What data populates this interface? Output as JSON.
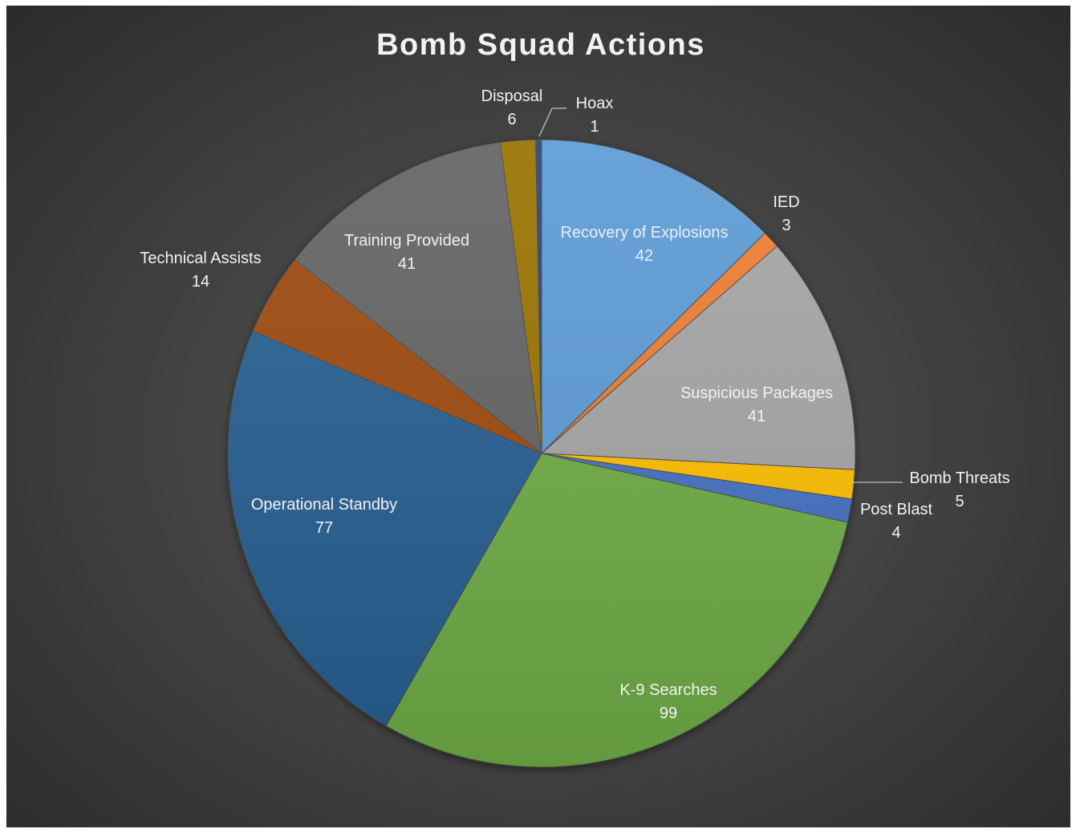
{
  "chart_data": {
    "type": "pie",
    "title": "Bomb Squad Actions",
    "legend": "none",
    "slices": [
      {
        "label": "Recovery of Explosions",
        "value": 42,
        "color": "#5b9bd5",
        "label_color": "#e8f0fa",
        "label_placement": "inside"
      },
      {
        "label": "IED",
        "value": 3,
        "color": "#ed7d31",
        "label_color": "#f2f2f2",
        "label_placement": "outside"
      },
      {
        "label": "Suspicious Packages",
        "value": 41,
        "color": "#a5a5a5",
        "label_color": "#f2f2f2",
        "label_placement": "inside"
      },
      {
        "label": "Bomb Threats",
        "value": 5,
        "color": "#ffc000",
        "label_color": "#f2f2f2",
        "label_placement": "outside"
      },
      {
        "label": "Post Blast",
        "value": 4,
        "color": "#4472c4",
        "label_color": "#f2f2f2",
        "label_placement": "outside"
      },
      {
        "label": "K-9 Searches",
        "value": 99,
        "color": "#70ad47",
        "label_color": "#f2f2f2",
        "label_placement": "inside"
      },
      {
        "label": "Operational Standby",
        "value": 77,
        "color": "#255e91",
        "label_color": "#f2f2f2",
        "label_placement": "inside"
      },
      {
        "label": "Technical Assists",
        "value": 14,
        "color": "#9e480e",
        "label_color": "#f2f2f2",
        "label_placement": "outside"
      },
      {
        "label": "Training Provided",
        "value": 41,
        "color": "#636363",
        "label_color": "#f2f2f2",
        "label_placement": "inside"
      },
      {
        "label": "Disposal",
        "value": 6,
        "color": "#997300",
        "label_color": "#f2f2f2",
        "label_placement": "outside"
      },
      {
        "label": "Hoax",
        "value": 1,
        "color": "#264478",
        "label_color": "#f2f2f2",
        "label_placement": "outside"
      }
    ]
  }
}
